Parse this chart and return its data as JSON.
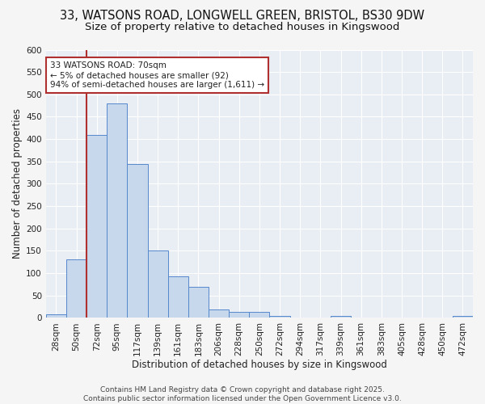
{
  "title_line1": "33, WATSONS ROAD, LONGWELL GREEN, BRISTOL, BS30 9DW",
  "title_line2": "Size of property relative to detached houses in Kingswood",
  "xlabel": "Distribution of detached houses by size in Kingswood",
  "ylabel": "Number of detached properties",
  "categories": [
    "28sqm",
    "50sqm",
    "72sqm",
    "95sqm",
    "117sqm",
    "139sqm",
    "161sqm",
    "183sqm",
    "206sqm",
    "228sqm",
    "250sqm",
    "272sqm",
    "294sqm",
    "317sqm",
    "339sqm",
    "361sqm",
    "383sqm",
    "405sqm",
    "428sqm",
    "450sqm",
    "472sqm"
  ],
  "values": [
    8,
    130,
    410,
    480,
    345,
    150,
    92,
    70,
    18,
    14,
    14,
    5,
    0,
    0,
    4,
    0,
    0,
    0,
    0,
    0,
    4
  ],
  "bar_color": "#c8d8ec",
  "bar_edge_color": "#5588cc",
  "vline_color": "#b03030",
  "annotation_text": "33 WATSONS ROAD: 70sqm\n← 5% of detached houses are smaller (92)\n94% of semi-detached houses are larger (1,611) →",
  "annotation_box_color": "#ffffff",
  "annotation_box_edge": "#b03030",
  "ylim": [
    0,
    600
  ],
  "yticks": [
    0,
    50,
    100,
    150,
    200,
    250,
    300,
    350,
    400,
    450,
    500,
    550,
    600
  ],
  "fig_background_color": "#f5f5f5",
  "plot_background_color": "#e8eef4",
  "grid_color": "#ffffff",
  "footer_text": "Contains HM Land Registry data © Crown copyright and database right 2025.\nContains public sector information licensed under the Open Government Licence v3.0.",
  "title_fontsize": 10.5,
  "subtitle_fontsize": 9.5,
  "axis_label_fontsize": 8.5,
  "tick_fontsize": 7.5,
  "annotation_fontsize": 7.5,
  "footer_fontsize": 6.5
}
